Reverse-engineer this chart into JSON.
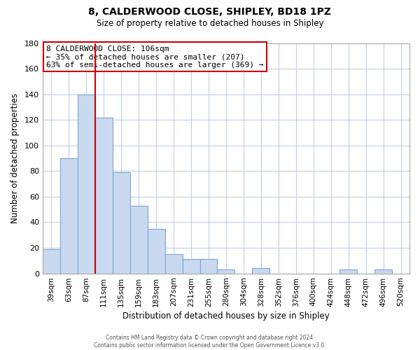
{
  "title": "8, CALDERWOOD CLOSE, SHIPLEY, BD18 1PZ",
  "subtitle": "Size of property relative to detached houses in Shipley",
  "xlabel": "Distribution of detached houses by size in Shipley",
  "ylabel": "Number of detached properties",
  "bar_labels": [
    "39sqm",
    "63sqm",
    "87sqm",
    "111sqm",
    "135sqm",
    "159sqm",
    "183sqm",
    "207sqm",
    "231sqm",
    "255sqm",
    "280sqm",
    "304sqm",
    "328sqm",
    "352sqm",
    "376sqm",
    "400sqm",
    "424sqm",
    "448sqm",
    "472sqm",
    "496sqm",
    "520sqm"
  ],
  "bar_values": [
    19,
    90,
    140,
    122,
    79,
    53,
    35,
    15,
    11,
    11,
    3,
    0,
    4,
    0,
    0,
    0,
    0,
    3,
    0,
    3,
    0
  ],
  "bar_color": "#c9d9f0",
  "bar_edgecolor": "#7ba4d4",
  "vline_color": "#cc0000",
  "vline_pos": 2.5,
  "ylim": [
    0,
    180
  ],
  "yticks": [
    0,
    20,
    40,
    60,
    80,
    100,
    120,
    140,
    160,
    180
  ],
  "annotation_title": "8 CALDERWOOD CLOSE: 106sqm",
  "annotation_line1": "← 35% of detached houses are smaller (207)",
  "annotation_line2": "63% of semi-detached houses are larger (369) →",
  "annotation_box_color": "#ffffff",
  "annotation_box_edgecolor": "#cc0000",
  "footer_line1": "Contains HM Land Registry data © Crown copyright and database right 2024.",
  "footer_line2": "Contains public sector information licensed under the Open Government Licence v3.0.",
  "background_color": "#ffffff",
  "grid_color": "#c0cfe0"
}
